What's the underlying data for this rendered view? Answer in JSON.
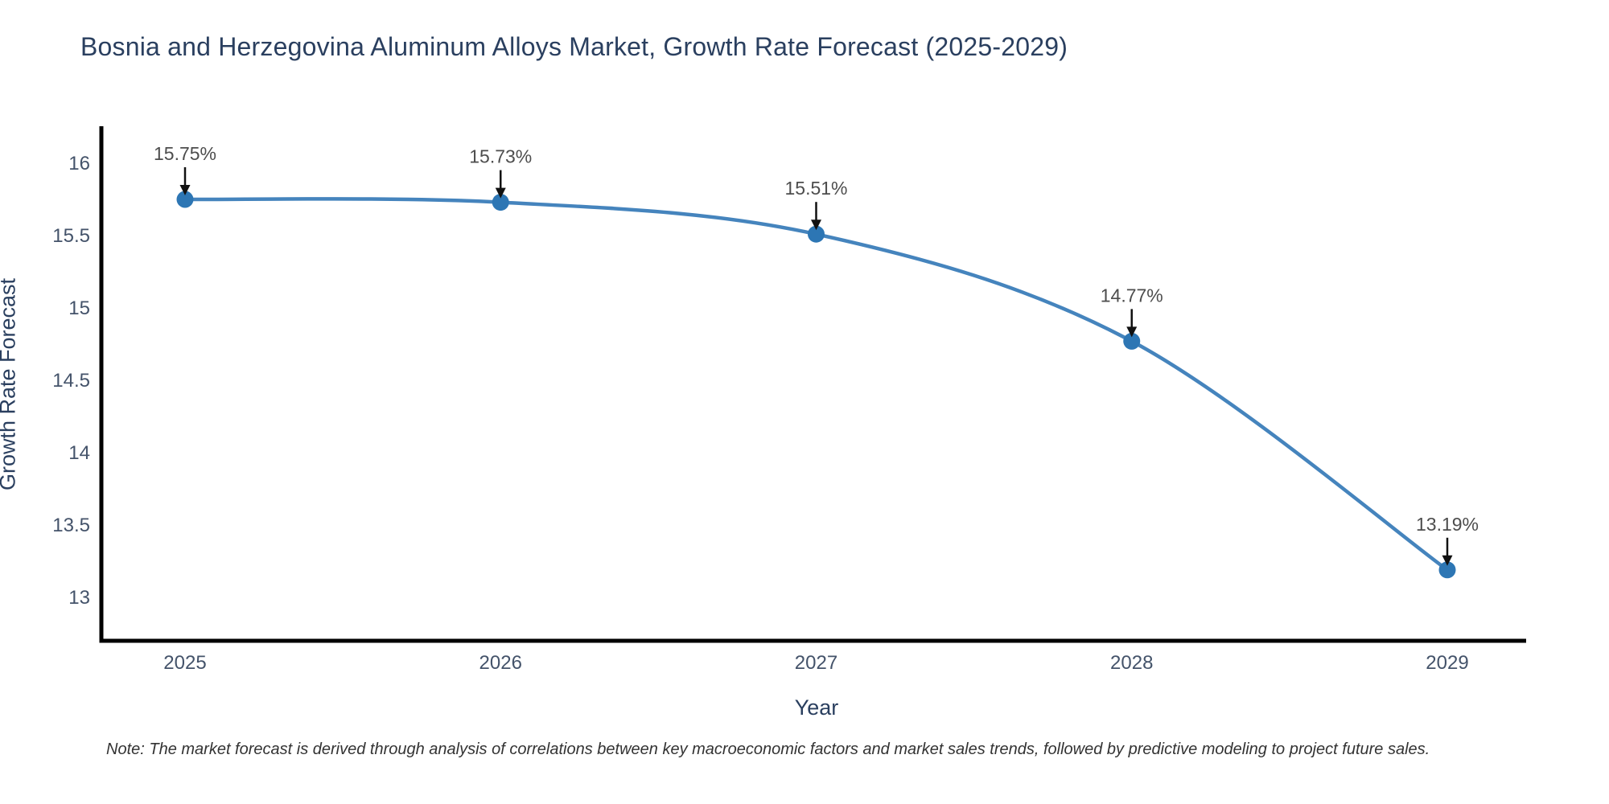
{
  "title": "Bosnia and Herzegovina Aluminum Alloys Market, Growth Rate Forecast (2025-2029)",
  "note": "Note: The market forecast is derived through analysis of correlations between key macroeconomic factors and market sales trends, followed by predictive modeling to project future sales.",
  "chart_data": {
    "type": "line",
    "title": "Bosnia and Herzegovina Aluminum Alloys Market, Growth Rate Forecast (2025-2029)",
    "xlabel": "Year",
    "ylabel": "Growth Rate Forecast",
    "categories": [
      "2025",
      "2026",
      "2027",
      "2028",
      "2029"
    ],
    "values": [
      15.75,
      15.73,
      15.51,
      14.77,
      13.19
    ],
    "point_labels": [
      "15.75%",
      "15.73%",
      "15.51%",
      "14.77%",
      "13.19%"
    ],
    "yticks": [
      16,
      15.5,
      15,
      14.5,
      14,
      13.5,
      13
    ],
    "ylim": [
      12.7,
      16.25
    ],
    "line_shape": "spline",
    "grid": false,
    "legend": "none",
    "colors": {
      "line": "#4584bd",
      "marker": "#2d76b4",
      "axis_line": "#000000",
      "title_text": "#2a3f5f",
      "tick_text": "#44536a",
      "annotation_text": "#4d4d4d",
      "annotation_arrow": "#111111"
    }
  }
}
